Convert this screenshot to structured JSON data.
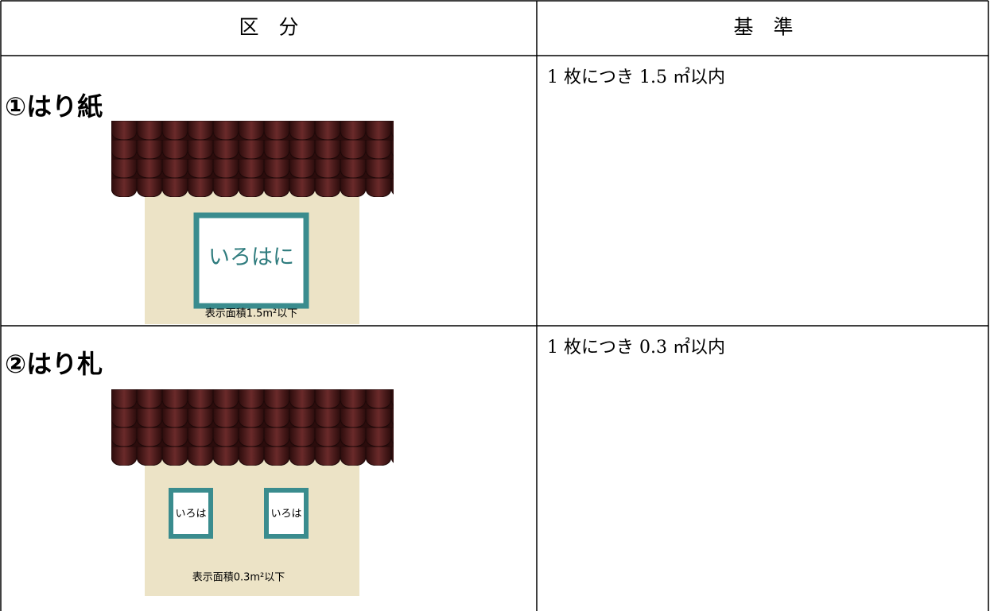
{
  "table": {
    "header": [
      "区　分",
      "基　準"
    ],
    "rows": [
      {
        "label": "①はり紙",
        "criterion": "1 枚につき 1.5 ㎡以内",
        "illustration": {
          "signs": [
            "いろはに"
          ],
          "caption": "表示面積1.5m²以下"
        }
      },
      {
        "label": "②はり札",
        "criterion": "1 枚につき 0.3 ㎡以内",
        "illustration": {
          "signs": [
            "いろは",
            "いろは"
          ],
          "caption": "表示面積0.3m²以下"
        }
      }
    ]
  }
}
